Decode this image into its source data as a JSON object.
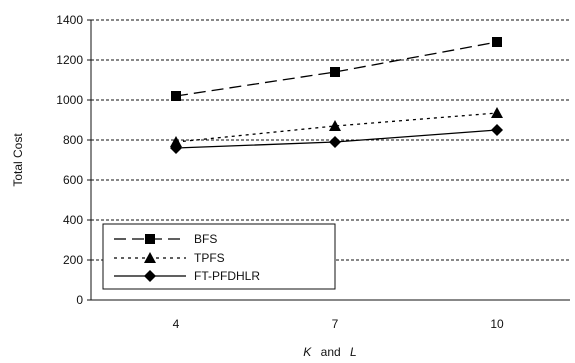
{
  "chart_data": {
    "type": "line",
    "categories": [
      "4",
      "7",
      "10"
    ],
    "series": [
      {
        "name": "BFS",
        "values": [
          1020,
          1140,
          1290
        ],
        "marker": "square",
        "dash": "long-dash",
        "color": "#000000"
      },
      {
        "name": "TPFS",
        "values": [
          790,
          870,
          935
        ],
        "marker": "triangle",
        "dash": "dotted",
        "color": "#000000"
      },
      {
        "name": "FT-PFDHLR",
        "values": [
          760,
          790,
          850
        ],
        "marker": "diamond",
        "dash": "solid",
        "color": "#000000"
      }
    ],
    "xlabel": {
      "k": "K",
      "and": "and",
      "l": "L"
    },
    "ylabel": "Total Cost",
    "ylim": [
      0,
      1400
    ],
    "yticks": [
      "0",
      "200",
      "400",
      "600",
      "800",
      "1000",
      "1200",
      "1400"
    ],
    "grid": true,
    "legend_position": "bottom-left"
  }
}
